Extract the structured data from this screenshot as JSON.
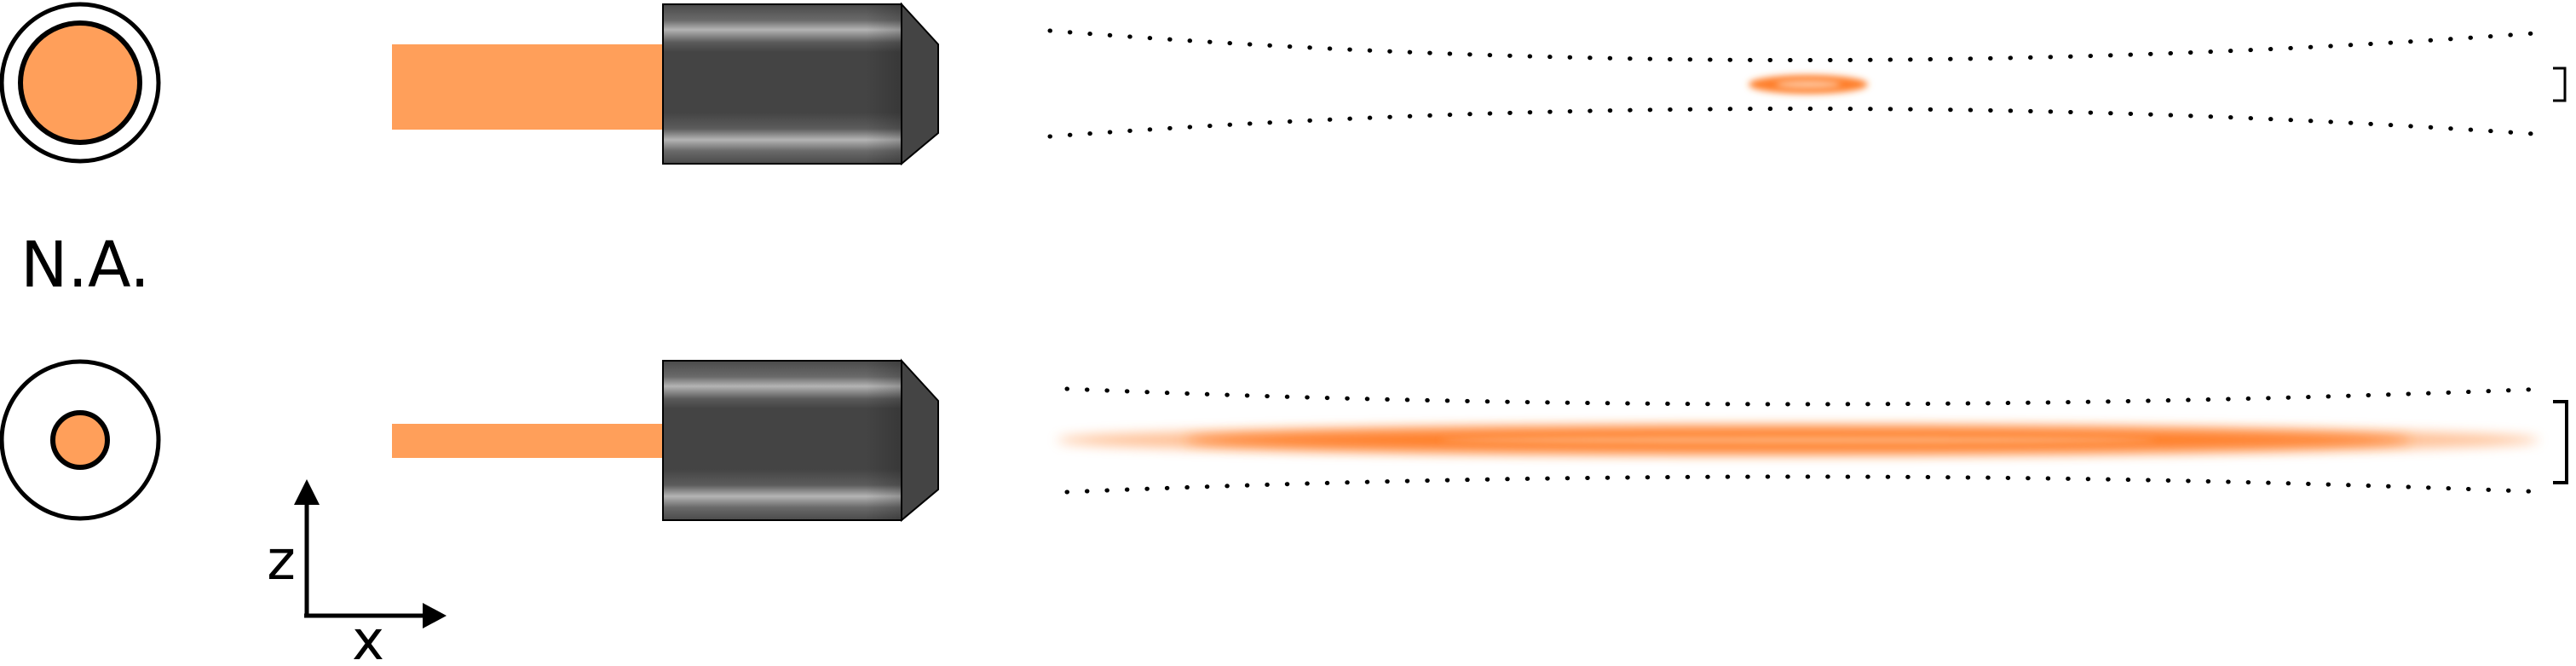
{
  "labels": {
    "numerical_aperture": "N.A.",
    "axis_z": "z",
    "axis_x": "x"
  },
  "colors": {
    "beam": "#ff9f5a",
    "focus": "#ff7f2a",
    "objective_body": "#4a4a4a",
    "objective_highlight": "#bdbdbd",
    "outline": "#000000"
  },
  "icons": {
    "aperture": "aperture-ring-icon",
    "objective": "objective-lens-icon",
    "axes": "coordinate-axes-icon",
    "focal_volume": "focal-spot-icon",
    "bracket": "bracket-icon"
  }
}
